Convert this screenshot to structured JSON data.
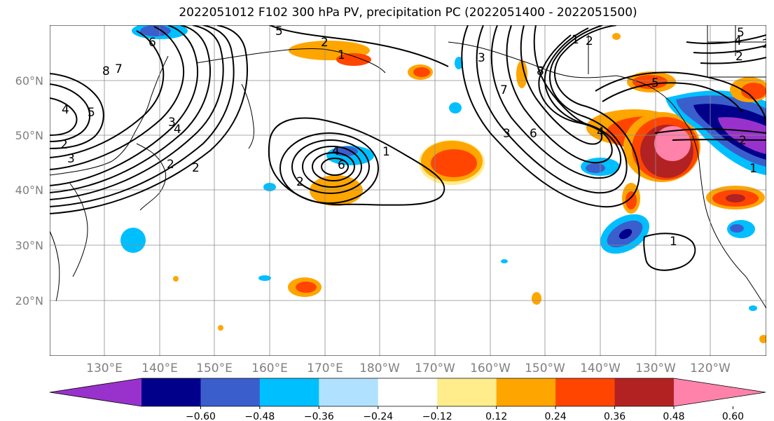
{
  "title": "2022051012 F102 300 hPa PV, precipitation PC (2022051400 - 2022051500)",
  "latitude_labels": [
    "60°N",
    "50°N",
    "40°N",
    "30°N",
    "20°N"
  ],
  "longitude_labels": [
    "130°E",
    "140°E",
    "150°E",
    "160°E",
    "170°E",
    "180°W",
    "170°W",
    "160°W",
    "150°W",
    "140°W",
    "130°W",
    "120°W"
  ],
  "colorbar": {
    "colors": [
      "#9932cc",
      "#00008b",
      "#3a5fcd",
      "#00bfff",
      "#b0e2ff",
      "#ffffff",
      "#ffec8b",
      "#ffa500",
      "#ff4500",
      "#b22222",
      "#ff82ab"
    ],
    "tick_labels": [
      "−0.60",
      "−0.48",
      "−0.36",
      "−0.24",
      "−0.12",
      "0.12",
      "0.24",
      "0.36",
      "0.48",
      "0.60"
    ]
  },
  "pv_contour_labels": [
    "6",
    "8",
    "7",
    "4",
    "5",
    "2",
    "3",
    "3",
    "2",
    "4",
    "2",
    "2",
    "1",
    "5",
    "2",
    "1",
    "4",
    "6",
    "2",
    "1",
    "3",
    "8",
    "7",
    "3",
    "6",
    "2",
    "1",
    "4",
    "5",
    "2",
    "5",
    "4",
    "2",
    "1"
  ]
}
